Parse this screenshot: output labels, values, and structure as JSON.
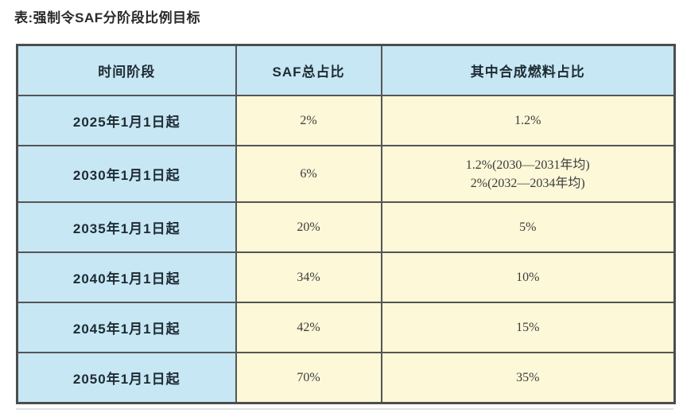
{
  "page": {
    "title": "表:强制令SAF分阶段比例目标"
  },
  "table": {
    "headers": [
      "时间阶段",
      "SAF总占比",
      "其中合成燃料占比"
    ],
    "rows": [
      {
        "period": "2025年1月1日起",
        "saf_total": "2%",
        "synthetic": [
          "1.2%"
        ]
      },
      {
        "period": "2030年1月1日起",
        "saf_total": "6%",
        "synthetic": [
          "1.2%(2030—2031年均)",
          "2%(2032—2034年均)"
        ]
      },
      {
        "period": "2035年1月1日起",
        "saf_total": "20%",
        "synthetic": [
          "5%"
        ]
      },
      {
        "period": "2040年1月1日起",
        "saf_total": "34%",
        "synthetic": [
          "10%"
        ]
      },
      {
        "period": "2045年1月1日起",
        "saf_total": "42%",
        "synthetic": [
          "15%"
        ]
      },
      {
        "period": "2050年1月1日起",
        "saf_total": "70%",
        "synthetic": [
          "35%"
        ]
      }
    ],
    "colors": {
      "header_bg": "#c7e7f4",
      "period_bg": "#c7e7f4",
      "value_bg": "#fcf8d8",
      "border": "#555555"
    }
  },
  "chart_data": {
    "type": "table",
    "title": "强制令SAF分阶段比例目标",
    "columns": [
      "时间阶段",
      "SAF总占比",
      "其中合成燃料占比"
    ],
    "rows": [
      [
        "2025年1月1日起",
        "2%",
        "1.2%"
      ],
      [
        "2030年1月1日起",
        "6%",
        "1.2%(2030—2031年均) 2%(2032—2034年均)"
      ],
      [
        "2035年1月1日起",
        "20%",
        "5%"
      ],
      [
        "2040年1月1日起",
        "34%",
        "10%"
      ],
      [
        "2045年1月1日起",
        "42%",
        "15%"
      ],
      [
        "2050年1月1日起",
        "70%",
        "35%"
      ]
    ]
  }
}
